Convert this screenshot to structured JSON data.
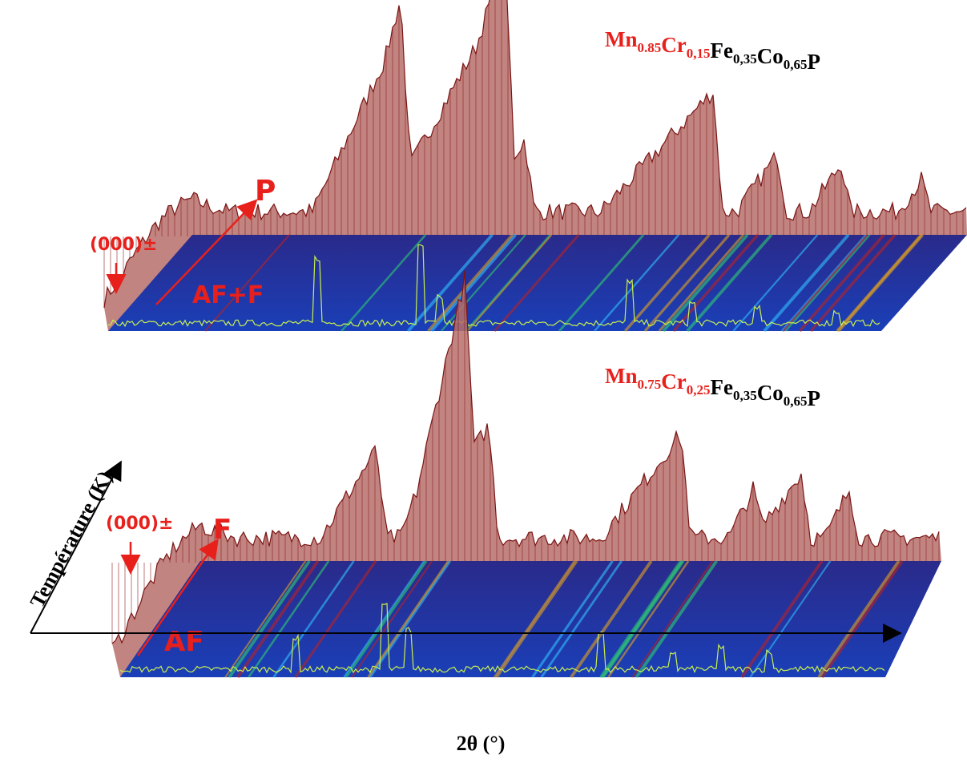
{
  "panels": [
    {
      "formula": [
        {
          "text": "Mn",
          "sub": "0.85",
          "color": "#e8201c"
        },
        {
          "text": "Cr",
          "sub": "0,15",
          "color": "#e8201c"
        },
        {
          "text": "Fe",
          "sub": "0,35",
          "color": "#000000"
        },
        {
          "text": "Co",
          "sub": "0,65",
          "color": "#000000"
        },
        {
          "text": "P",
          "color": "#000000"
        }
      ],
      "annotations": {
        "peak_marker": "(000)±",
        "high_phase": "P",
        "low_phase": "AF+F"
      }
    },
    {
      "formula": [
        {
          "text": "Mn",
          "sub": "0.75",
          "color": "#e8201c"
        },
        {
          "text": "Cr",
          "sub": "0,25",
          "color": "#e8201c"
        },
        {
          "text": "Fe",
          "sub": "0,35",
          "color": "#000000"
        },
        {
          "text": "Co",
          "sub": "0,65",
          "color": "#000000"
        },
        {
          "text": "P",
          "color": "#000000"
        }
      ],
      "annotations": {
        "peak_marker": "(000)±",
        "high_phase": "F",
        "low_phase": "AF"
      }
    }
  ],
  "axes": {
    "y_label": "Température (K)",
    "x_label": "2θ (°)"
  }
}
